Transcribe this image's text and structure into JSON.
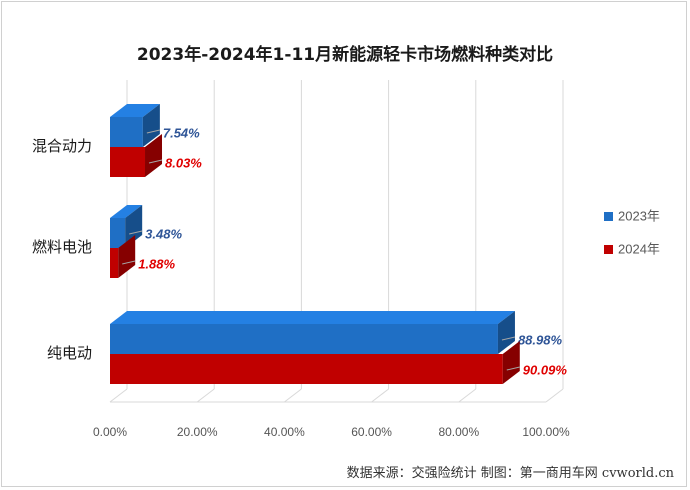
{
  "chart_data": {
    "type": "bar",
    "orientation": "horizontal",
    "title": "2023年-2024年1-11月新能源轻卡市场燃料种类对比",
    "categories": [
      "混合动力",
      "燃料电池",
      "纯电动"
    ],
    "series": [
      {
        "name": "2023年",
        "values": [
          7.54,
          3.48,
          88.98
        ],
        "labels": [
          "7.54%",
          "3.48%",
          "88.98%"
        ],
        "color": "#1f6fc5"
      },
      {
        "name": "2024年",
        "values": [
          8.03,
          1.88,
          90.09
        ],
        "labels": [
          "8.03%",
          "1.88%",
          "90.09%"
        ],
        "color": "#c00000"
      }
    ],
    "x_ticks": [
      "0.00%",
      "20.00%",
      "40.00%",
      "60.00%",
      "80.00%",
      "100.00%"
    ],
    "xlim": [
      0,
      100
    ],
    "grid": true,
    "legend_position": "right",
    "label_colors": {
      "2023年": "#2f5597",
      "2024年": "#e00000"
    }
  },
  "source": "数据来源：交强险统计 制图：第一商用车网 cvworld.cn"
}
